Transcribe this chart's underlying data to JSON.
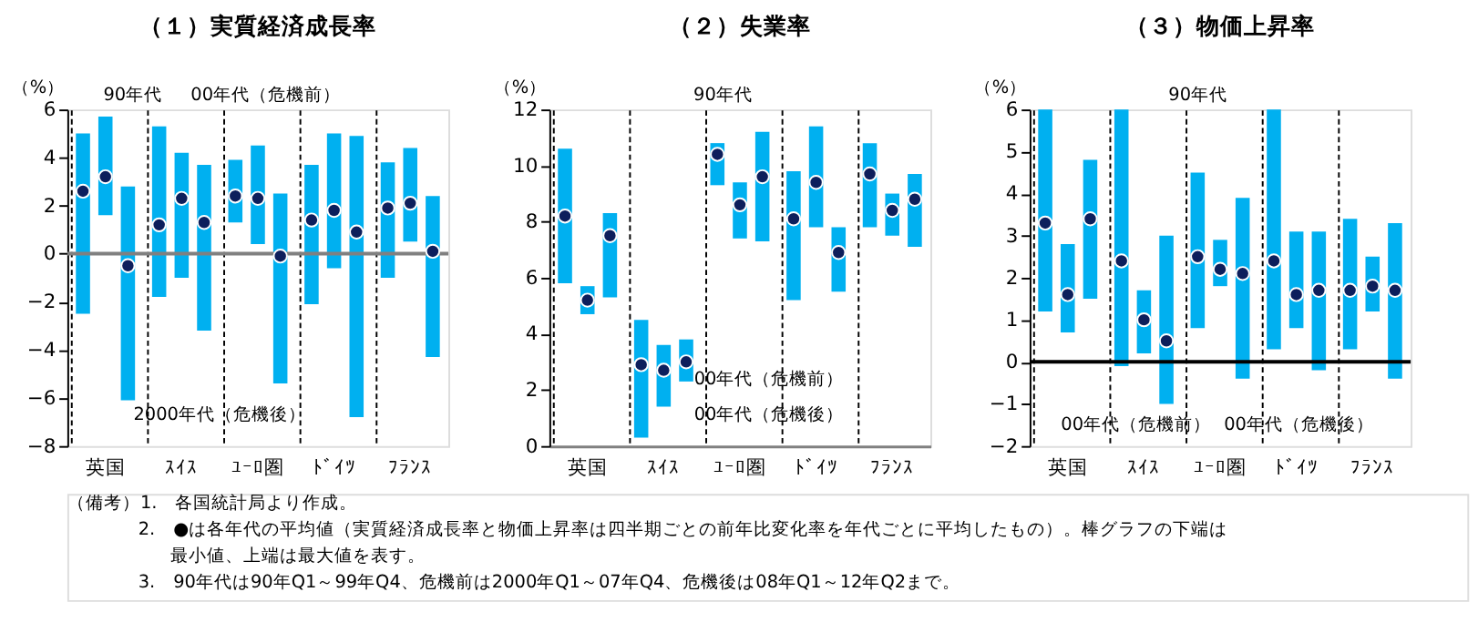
{
  "chart_data": [
    {
      "type": "bar",
      "title": "（１）実質経済成長率",
      "ylabel": "（%）",
      "categories": [
        "英国",
        "ｽｲｽ",
        "ﾕｰﾛ圏",
        "ﾄﾞｲﾂ",
        "ﾌﾗﾝｽ"
      ],
      "series": [
        {
          "type": "bar",
          "color": "#00b0f0",
          "base": [
            -2.5,
            -1.8,
            1.3,
            -2.1,
            -1.0
          ],
          "values": [
            7.5,
            7.1,
            2.6,
            5.8,
            4.8
          ]
        },
        {
          "type": "bar",
          "color": "#00b0f0",
          "base": [
            1.6,
            -1.0,
            0.4,
            -0.6,
            0.5
          ],
          "values": [
            4.1,
            5.2,
            4.1,
            5.6,
            3.9
          ]
        },
        {
          "type": "bar",
          "color": "#00b0f0",
          "base": [
            -6.1,
            -3.2,
            -5.4,
            -6.8,
            -4.3
          ],
          "values": [
            8.9,
            6.9,
            7.9,
            11.7,
            6.7
          ]
        },
        {
          "type": "scatter",
          "color": "#0d1f5c",
          "x": [
            "英国",
            "ｽｲｽ",
            "ﾕｰﾛ圏",
            "ﾄﾞｲﾂ",
            "ﾌﾗﾝｽ"
          ],
          "values": [
            2.6,
            1.2,
            2.4,
            1.4,
            1.9
          ]
        },
        {
          "type": "scatter",
          "color": "#0d1f5c",
          "x": [
            "英国",
            "ｽｲｽ",
            "ﾕｰﾛ圏",
            "ﾄﾞｲﾂ",
            "ﾌﾗﾝｽ"
          ],
          "values": [
            3.2,
            2.3,
            2.3,
            1.8,
            2.1
          ]
        },
        {
          "type": "scatter",
          "color": "#0d1f5c",
          "x": [
            "英国",
            "ｽｲｽ",
            "ﾕｰﾛ圏",
            "ﾄﾞｲﾂ",
            "ﾌﾗﾝｽ"
          ],
          "values": [
            -0.5,
            1.3,
            -0.1,
            0.9,
            0.1
          ]
        }
      ],
      "ylim": [
        -8,
        6
      ],
      "yticks": [
        -8,
        -6,
        -4,
        -2,
        0,
        2,
        4,
        6
      ],
      "grid": "x",
      "marker": "circle",
      "ref_lines": [
        {
          "axis": "y",
          "value": 0,
          "color": "#808080"
        }
      ],
      "annotations": [
        "90年代",
        "00年代（危機前）",
        "2000年代（危機後）"
      ]
    },
    {
      "type": "bar",
      "title": "（２）失業率",
      "ylabel": "（%）",
      "categories": [
        "英国",
        "ｽｲｽ",
        "ﾕｰﾛ圏",
        "ﾄﾞｲﾂ",
        "ﾌﾗﾝｽ"
      ],
      "series": [
        {
          "type": "bar",
          "color": "#00b0f0",
          "base": [
            5.8,
            0.3,
            9.3,
            5.2,
            7.8
          ],
          "values": [
            4.8,
            4.2,
            1.5,
            4.6,
            3.0
          ]
        },
        {
          "type": "bar",
          "color": "#00b0f0",
          "base": [
            4.7,
            1.4,
            7.4,
            7.8,
            7.5
          ],
          "values": [
            1.0,
            2.2,
            2.0,
            3.6,
            1.5
          ]
        },
        {
          "type": "bar",
          "color": "#00b0f0",
          "base": [
            5.3,
            2.3,
            7.3,
            5.5,
            7.1
          ],
          "values": [
            3.0,
            1.5,
            3.9,
            2.3,
            2.6
          ]
        },
        {
          "type": "scatter",
          "color": "#0d1f5c",
          "x": [
            "英国",
            "ｽｲｽ",
            "ﾕｰﾛ圏",
            "ﾄﾞｲﾂ",
            "ﾌﾗﾝｽ"
          ],
          "values": [
            8.2,
            2.9,
            10.4,
            8.1,
            9.7
          ]
        },
        {
          "type": "scatter",
          "color": "#0d1f5c",
          "x": [
            "英国",
            "ｽｲｽ",
            "ﾕｰﾛ圏",
            "ﾄﾞｲﾂ",
            "ﾌﾗﾝｽ"
          ],
          "values": [
            5.2,
            2.7,
            8.6,
            9.4,
            8.4
          ]
        },
        {
          "type": "scatter",
          "color": "#0d1f5c",
          "x": [
            "英国",
            "ｽｲｽ",
            "ﾕｰﾛ圏",
            "ﾄﾞｲﾂ",
            "ﾌﾗﾝｽ"
          ],
          "values": [
            7.5,
            3.0,
            9.6,
            6.9,
            8.8
          ]
        }
      ],
      "ylim": [
        0,
        12
      ],
      "yticks": [
        0,
        2,
        4,
        6,
        8,
        10,
        12
      ],
      "grid": "x",
      "marker": "circle",
      "annotations": [
        "90年代",
        "00年代（危機前）",
        "00年代（危機後）"
      ]
    },
    {
      "type": "bar",
      "title": "（３）物価上昇率",
      "ylabel": "（%）",
      "categories": [
        "英国",
        "ｽｲｽ",
        "ﾕｰﾛ圏",
        "ﾄﾞｲﾂ",
        "ﾌﾗﾝｽ"
      ],
      "series": [
        {
          "type": "bar",
          "color": "#00b0f0",
          "base": [
            1.2,
            -0.1,
            0.8,
            0.3,
            0.3
          ],
          "values": [
            4.8,
            6.1,
            3.7,
            5.7,
            3.1
          ]
        },
        {
          "type": "bar",
          "color": "#00b0f0",
          "base": [
            0.7,
            0.2,
            1.8,
            0.8,
            1.2
          ],
          "values": [
            2.1,
            1.5,
            1.1,
            2.3,
            1.3
          ]
        },
        {
          "type": "bar",
          "color": "#00b0f0",
          "base": [
            1.5,
            -1.0,
            -0.4,
            -0.2,
            -0.4
          ],
          "values": [
            3.3,
            4.0,
            4.3,
            3.3,
            3.7
          ]
        },
        {
          "type": "scatter",
          "color": "#0d1f5c",
          "x": [
            "英国",
            "ｽｲｽ",
            "ﾕｰﾛ圏",
            "ﾄﾞｲﾂ",
            "ﾌﾗﾝｽ"
          ],
          "values": [
            3.3,
            2.4,
            2.5,
            2.4,
            1.7
          ]
        },
        {
          "type": "scatter",
          "color": "#0d1f5c",
          "x": [
            "英国",
            "ｽｲｽ",
            "ﾕｰﾛ圏",
            "ﾄﾞｲﾂ",
            "ﾌﾗﾝｽ"
          ],
          "values": [
            1.6,
            1.0,
            2.2,
            1.6,
            1.8
          ]
        },
        {
          "type": "scatter",
          "color": "#0d1f5c",
          "x": [
            "英国",
            "ｽｲｽ",
            "ﾕｰﾛ圏",
            "ﾄﾞｲﾂ",
            "ﾌﾗﾝｽ"
          ],
          "values": [
            3.4,
            0.5,
            2.1,
            1.7,
            1.7
          ]
        }
      ],
      "ylim": [
        -2,
        6
      ],
      "yticks": [
        -2,
        -1,
        0,
        1,
        2,
        3,
        4,
        5,
        6
      ],
      "grid": "x",
      "marker": "circle",
      "ref_lines": [
        {
          "axis": "y",
          "value": 0,
          "color": "#000000"
        }
      ],
      "annotations": [
        "90年代",
        "00年代（危機前）",
        "00年代（危機後）"
      ]
    },
    {
      "type": "other",
      "annotations": [
        "（備考）1.　各国統計局より作成。",
        "2.　●は各年代の平均値（実質経済成長率と物価上昇率は四半期ごとの前年比変化率を年代ごとに平均したもの）。棒グラフの下端は",
        "最小値、上端は最大値を表す。",
        "3.　90年代は90年Q1～99年Q4、危機前は2000年Q1～07年Q4、危機後は08年Q1～12年Q2まで。"
      ]
    }
  ]
}
